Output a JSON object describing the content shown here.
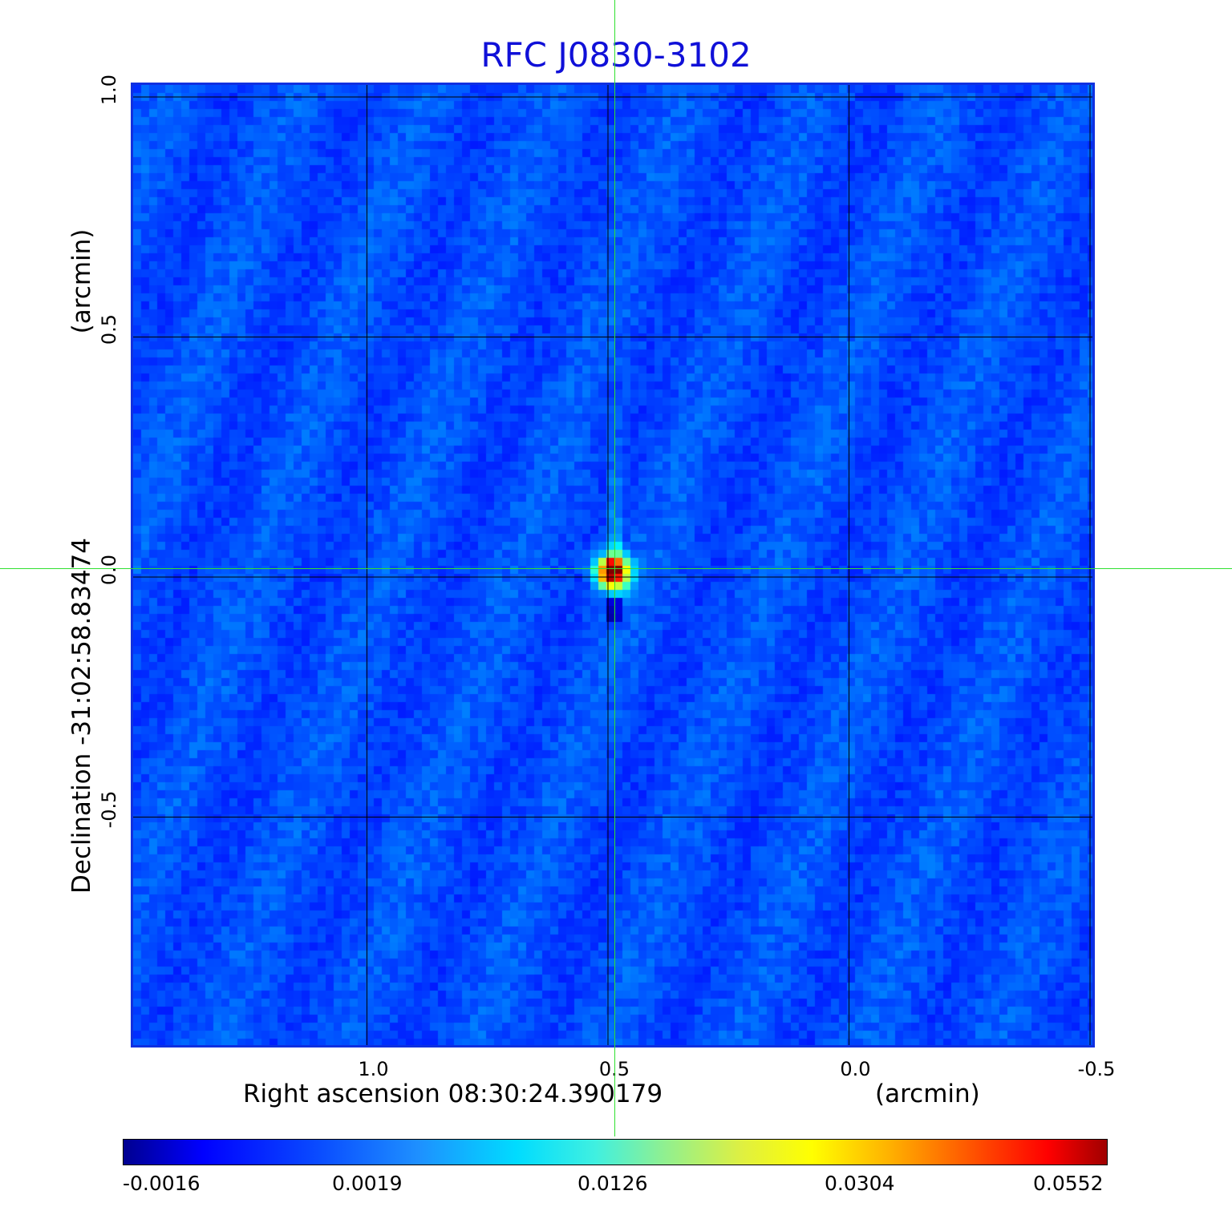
{
  "chart_data": {
    "type": "heatmap",
    "title": "RFC J0830-3102",
    "xlabel": "Right ascension  08:30:24.390179",
    "xunit": "(arcmin)",
    "ylabel": "Declination  -31:02:58.83474",
    "yunit": "(arcmin)",
    "x_ticks": [
      "1.0",
      "0.5",
      "0.0",
      "-0.5"
    ],
    "x_tick_values": [
      1.0,
      0.5,
      0.0,
      -0.5
    ],
    "y_ticks": [
      "1.0",
      "0.5",
      "0.0",
      "-0.5"
    ],
    "y_tick_values": [
      1.0,
      0.5,
      0.0,
      -0.5
    ],
    "xlim": [
      1.49,
      -0.51
    ],
    "ylim": [
      -0.98,
      1.03
    ],
    "grid": true,
    "colormap": "jet",
    "colorbar_ticks": [
      "-0.0016",
      "0.0019",
      "0.0126",
      "0.0304",
      "0.0552"
    ],
    "colorbar_tick_values": [
      -0.0016,
      0.0019,
      0.0126,
      0.0304,
      0.0552
    ],
    "source_peak": {
      "x": 0.49,
      "y": 0.01,
      "value": 0.0552
    },
    "crosshair": {
      "x": 0.49,
      "y": 0.01
    },
    "colors": {
      "title": "#1010d8",
      "crosshair": "#30e030",
      "frame": "#1030e0",
      "background_level": "#1e5cff"
    }
  }
}
